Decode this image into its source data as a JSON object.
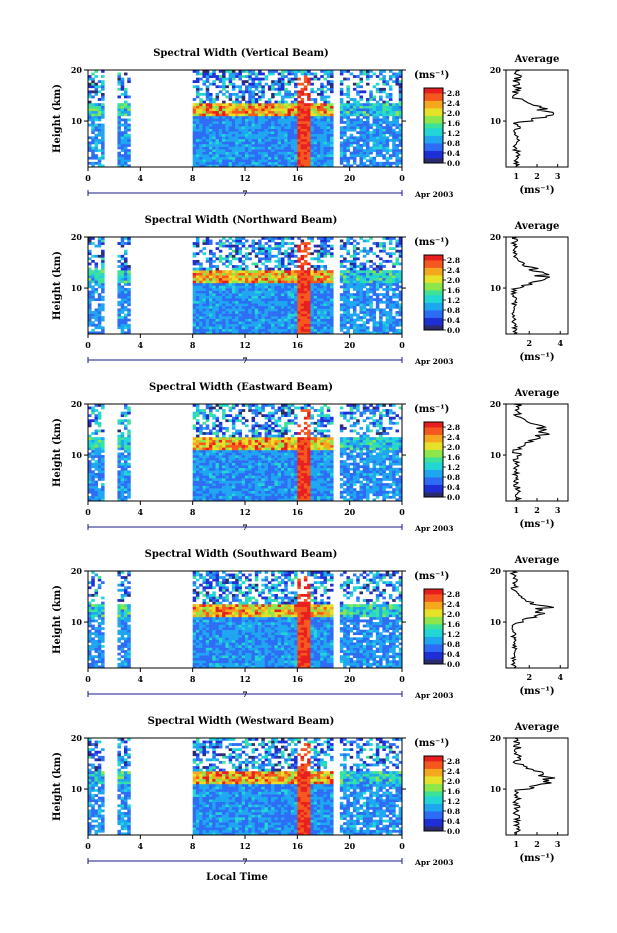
{
  "xlabel": "Local Time",
  "unit_label": "(ms⁻¹)",
  "average_title": "Average",
  "date_label": "Apr 2003",
  "day_label": "7",
  "colorbar_ticks": [
    "0.0",
    "0.4",
    "0.8",
    "1.2",
    "1.6",
    "2.0",
    "2.4",
    "2.8"
  ],
  "colors": {
    "palette": [
      "#2b2b6e",
      "#1f2fd6",
      "#2d6cf5",
      "#1ea7f0",
      "#22d6d6",
      "#3ce29a",
      "#8de64a",
      "#e6e22a",
      "#f5a81e",
      "#f5581e",
      "#e81f1f"
    ],
    "axis": "#000000",
    "time_axis": "#1a1a8a"
  },
  "chart_data": [
    {
      "type": "heatmap",
      "title": "Spectral Width (Vertical Beam)",
      "ylabel": "Height (km)",
      "xlim": [
        0,
        24
      ],
      "ylim": [
        1,
        20
      ],
      "x_ticks": [
        "0",
        "4",
        "8",
        "12",
        "16",
        "20",
        "0"
      ],
      "y_ticks": [
        "10",
        "20"
      ],
      "colorbar_range": [
        0,
        3.0
      ],
      "data_gaps_hours": [
        [
          1.2,
          2.3
        ],
        [
          3.2,
          8.0
        ],
        [
          18.8,
          19.3
        ]
      ],
      "average_profile": {
        "xlabel": "(ms⁻¹)",
        "x_ticks": [
          "1",
          "2",
          "3"
        ],
        "xlim": [
          0.5,
          3.5
        ],
        "peak_height_km": 11.5,
        "peak_value": 2.9
      }
    },
    {
      "type": "heatmap",
      "title": "Spectral Width (Northward Beam)",
      "ylabel": "Height (km)",
      "xlim": [
        0,
        24
      ],
      "ylim": [
        1,
        20
      ],
      "x_ticks": [
        "0",
        "4",
        "8",
        "12",
        "16",
        "20",
        "0"
      ],
      "y_ticks": [
        "10",
        "20"
      ],
      "colorbar_range": [
        0,
        3.0
      ],
      "data_gaps_hours": [
        [
          1.2,
          2.3
        ],
        [
          3.2,
          8.0
        ],
        [
          18.8,
          19.3
        ]
      ],
      "average_profile": {
        "xlabel": "(ms⁻¹)",
        "x_ticks": [
          "2",
          "4"
        ],
        "xlim": [
          0.5,
          4.5
        ],
        "peak_height_km": 12.5,
        "peak_value": 3.6
      }
    },
    {
      "type": "heatmap",
      "title": "Spectral Width (Eastward Beam)",
      "ylabel": "Height (km)",
      "xlim": [
        0,
        24
      ],
      "ylim": [
        1,
        20
      ],
      "x_ticks": [
        "0",
        "4",
        "8",
        "12",
        "16",
        "20",
        "0"
      ],
      "y_ticks": [
        "10",
        "20"
      ],
      "colorbar_range": [
        0,
        3.0
      ],
      "data_gaps_hours": [
        [
          1.2,
          2.3
        ],
        [
          3.2,
          8.0
        ],
        [
          18.8,
          19.3
        ]
      ],
      "average_profile": {
        "xlabel": "(ms⁻¹)",
        "x_ticks": [
          "1",
          "2",
          "3"
        ],
        "xlim": [
          0.5,
          3.5
        ],
        "peak_height_km": 14.5,
        "peak_value": 2.8
      }
    },
    {
      "type": "heatmap",
      "title": "Spectral Width (Southward Beam)",
      "ylabel": "Height (km)",
      "xlim": [
        0,
        24
      ],
      "ylim": [
        1,
        20
      ],
      "x_ticks": [
        "0",
        "4",
        "8",
        "12",
        "16",
        "20",
        "0"
      ],
      "y_ticks": [
        "10",
        "20"
      ],
      "colorbar_range": [
        0,
        3.0
      ],
      "data_gaps_hours": [
        [
          1.2,
          2.3
        ],
        [
          3.2,
          8.0
        ],
        [
          18.8,
          19.3
        ]
      ],
      "average_profile": {
        "xlabel": "(ms⁻¹)",
        "x_ticks": [
          "2",
          "4"
        ],
        "xlim": [
          0.5,
          4.5
        ],
        "peak_height_km": 12.5,
        "peak_value": 3.8
      }
    },
    {
      "type": "heatmap",
      "title": "Spectral Width (Westward Beam)",
      "ylabel": "Height (km)",
      "xlim": [
        0,
        24
      ],
      "ylim": [
        1,
        20
      ],
      "x_ticks": [
        "0",
        "4",
        "8",
        "12",
        "16",
        "20",
        "0"
      ],
      "y_ticks": [
        "10",
        "20"
      ],
      "colorbar_range": [
        0,
        3.0
      ],
      "data_gaps_hours": [
        [
          1.2,
          2.3
        ],
        [
          3.2,
          8.0
        ],
        [
          18.8,
          19.3
        ]
      ],
      "average_profile": {
        "xlabel": "(ms⁻¹)",
        "x_ticks": [
          "1",
          "2",
          "3"
        ],
        "xlim": [
          0.5,
          3.5
        ],
        "peak_height_km": 12.0,
        "peak_value": 3.0
      }
    }
  ]
}
